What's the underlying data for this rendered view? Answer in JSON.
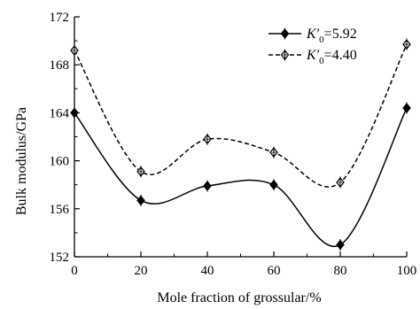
{
  "chart_data": {
    "type": "line",
    "xlabel": "Mole fraction of grossular/%",
    "ylabel": "Bulk modulus/GPa",
    "xlim": [
      0,
      100
    ],
    "ylim": [
      152,
      172
    ],
    "xticks": [
      0,
      20,
      40,
      60,
      80,
      100
    ],
    "yticks": [
      152,
      156,
      160,
      164,
      168,
      172
    ],
    "x": [
      0,
      20,
      40,
      60,
      80,
      100
    ],
    "grid": false,
    "legend_position": "top-right",
    "series": [
      {
        "name": "K′0=5.92",
        "legend_var": "K′",
        "legend_sub": "0",
        "legend_val": "=5.92",
        "values": [
          164.0,
          156.7,
          157.9,
          158.0,
          153.0,
          164.4
        ],
        "line_style": "solid",
        "marker": "filled-diamond",
        "color": "#000000"
      },
      {
        "name": "K′0=4.40",
        "legend_var": "K′",
        "legend_sub": "0",
        "legend_val": "=4.40",
        "values": [
          169.2,
          159.1,
          161.8,
          160.7,
          158.2,
          169.7
        ],
        "line_style": "dashed",
        "marker": "open-diamond",
        "color": "#000000"
      }
    ]
  }
}
